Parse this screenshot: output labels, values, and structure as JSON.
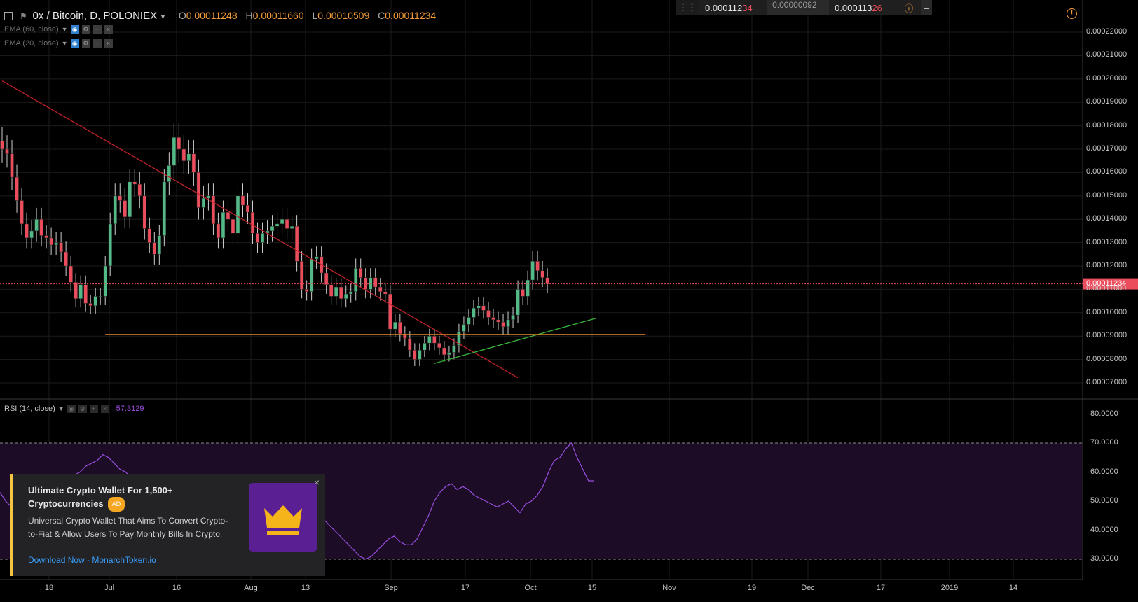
{
  "header": {
    "symbol": "0x / Bitcoin, D, POLONIEX",
    "open_label": "O",
    "open": "0.00011248",
    "high_label": "H",
    "high": "0.00011660",
    "low_label": "L",
    "low": "0.00010509",
    "close_label": "C",
    "close": "0.00011234"
  },
  "indicators": [
    {
      "label": "EMA (60, close)"
    },
    {
      "label": "EMA (20, close)"
    }
  ],
  "top_widget": {
    "bid_prefix": "0.000112",
    "bid_suffix": "34",
    "spread": "0.00000092",
    "ask_prefix": "0.000113",
    "ask_suffix": "26"
  },
  "price_axis": [
    "0.00022000",
    "0.00021000",
    "0.00020000",
    "0.00019000",
    "0.00018000",
    "0.00017000",
    "0.00016000",
    "0.00015000",
    "0.00014000",
    "0.00013000",
    "0.00012000",
    "0.00011000",
    "0.00010000",
    "0.00009000",
    "0.00008000",
    "0.00007000"
  ],
  "current_price_tag": "0.00011234",
  "rsi": {
    "label": "RSI (14, close)",
    "value": "57.3129",
    "axis": [
      "80.0000",
      "70.0000",
      "60.0000",
      "50.0000",
      "40.0000",
      "30.0000"
    ],
    "upper_band": 70,
    "lower_band": 30,
    "values": [
      53,
      50,
      48,
      46,
      43,
      42,
      41,
      44,
      48,
      50,
      52,
      55,
      57,
      59,
      60,
      62,
      63,
      64,
      66,
      65,
      63,
      61,
      60,
      58,
      57,
      55,
      53,
      51,
      50,
      49,
      48,
      47,
      45,
      43,
      42,
      41,
      40,
      39,
      38,
      37,
      36,
      37,
      38,
      39,
      41,
      43,
      45,
      47,
      46,
      44,
      43,
      42,
      41,
      42,
      43,
      44,
      45,
      43,
      41,
      39,
      37,
      35,
      33,
      31,
      30,
      31,
      33,
      35,
      37,
      38,
      36,
      35,
      35,
      37,
      41,
      45,
      50,
      53,
      55,
      56,
      54,
      55,
      54,
      52,
      51,
      50,
      49,
      48,
      49,
      50,
      48,
      46,
      49,
      50,
      52,
      55,
      60,
      64,
      65,
      68,
      70,
      65,
      61,
      57,
      57
    ]
  },
  "x_axis": [
    "18",
    "Jul",
    "16",
    "Aug",
    "13",
    "Sep",
    "17",
    "Oct",
    "15",
    "Nov",
    "19",
    "Dec",
    "17",
    "2019",
    "14"
  ],
  "chart_data": {
    "type": "candlestick",
    "title": "0x / Bitcoin, D, POLONIEX",
    "ylim": [
      6.85e-05,
      0.000226
    ],
    "colors": {
      "up": "#53b987",
      "down": "#eb4d5c",
      "trend_down": "#c0222a",
      "trend_up": "#3ab53a",
      "support": "#e08a2c",
      "price_line": "#eb4d5c",
      "rsi": "#9a4fe0"
    },
    "close": [
      0.00017,
      0.000168,
      0.000158,
      0.000148,
      0.000138,
      0.000132,
      0.000135,
      0.00014,
      0.000133,
      0.000132,
      0.000129,
      0.00013,
      0.000126,
      0.00012,
      0.000113,
      0.000106,
      0.000112,
      0.000104,
      0.000103,
      0.000107,
      0.000107,
      0.00012,
      0.000138,
      0.00015,
      0.000148,
      0.000141,
      0.000156,
      0.000155,
      0.00015,
      0.000136,
      0.00013,
      0.000125,
      0.000133,
      0.000156,
      0.000163,
      0.000175,
      0.00017,
      0.000165,
      0.000168,
      0.00016,
      0.000145,
      0.000149,
      0.00015,
      0.000138,
      0.000132,
      0.000143,
      0.00014,
      0.000134,
      0.00015,
      0.000146,
      0.000143,
      0.000134,
      0.00013,
      0.000134,
      0.000135,
      0.000137,
      0.000138,
      0.00014,
      0.000136,
      0.000137,
      0.000122,
      0.00011,
      0.000109,
      0.000123,
      0.000124,
      0.000117,
      0.000112,
      0.000107,
      0.000111,
      0.000106,
      0.000108,
      0.000109,
      0.000119,
      0.000115,
      0.00011,
      0.000115,
      0.000111,
      0.000109,
      0.000108,
      9.3e-05,
      9.6e-05,
      9.1e-05,
      8.9e-05,
      8.4e-05,
      8e-05,
      8.4e-05,
      8.7e-05,
      9e-05,
      8.7e-05,
      8.5e-05,
      8.2e-05,
      8.3e-05,
      8.6e-05,
      9.2e-05,
      9.5e-05,
      9.8e-05,
      0.000102,
      0.000103,
      0.000101,
      9.8e-05,
      9.7e-05,
      9.6e-05,
      9.4e-05,
      9.7e-05,
      9.9e-05,
      0.00011,
      0.000107,
      0.000114,
      0.000122,
      0.000118,
      0.000115,
      0.0001123
    ],
    "trendlines": [
      {
        "name": "descending",
        "from": {
          "x": 0,
          "y": 0.0001992
        },
        "to": {
          "x": 105,
          "y": 7.22e-05
        }
      },
      {
        "name": "ascending",
        "from": {
          "x": 88,
          "y": 7.83e-05
        },
        "to": {
          "x": 121,
          "y": 9.77e-05
        }
      },
      {
        "name": "horizontal-support",
        "from": {
          "x": 21,
          "y": 9.07e-05
        },
        "to": {
          "x": 131,
          "y": 9.07e-05
        }
      }
    ]
  },
  "ad": {
    "title": "Ultimate Crypto Wallet For 1,500+ Cryptocurrencies",
    "badge": "AD",
    "description": "Universal Crypto Wallet That Aims To Convert Crypto-to-Fiat & Allow Users To Pay Monthly Bills In Crypto.",
    "link": "Download Now - MonarchToken.io",
    "close": "×"
  },
  "icons": {
    "alert": "alert-icon",
    "minimize": "minimize-icon",
    "drag": "drag-handle-icon",
    "info": "info-icon"
  }
}
